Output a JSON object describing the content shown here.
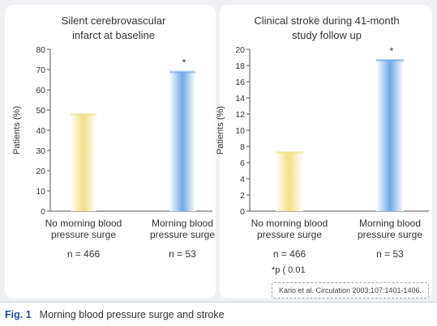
{
  "chart_data": [
    {
      "type": "bar",
      "title": [
        "Silent cerebrovascular",
        "infarct at baseline"
      ],
      "ylabel": "Patients (%)",
      "ylim": [
        0,
        80
      ],
      "yticks": [
        0,
        10,
        20,
        30,
        40,
        50,
        60,
        70,
        80
      ],
      "categories": [
        {
          "lines": [
            "No morning blood",
            "pressure surge"
          ],
          "n": "n = 466"
        },
        {
          "lines": [
            "Morning blood",
            "pressure surge"
          ],
          "n": "n = 53"
        }
      ],
      "values": [
        48,
        69
      ],
      "significance": [
        "",
        "*"
      ],
      "colors": [
        "#f1df86",
        "#6fa8e6"
      ]
    },
    {
      "type": "bar",
      "title": [
        "Clinical stroke during 41-month",
        "study follow up"
      ],
      "ylabel": "Patients (%)",
      "ylim": [
        0,
        20
      ],
      "yticks": [
        0,
        2,
        4,
        6,
        8,
        10,
        12,
        14,
        16,
        18,
        20
      ],
      "categories": [
        {
          "lines": [
            "No morning blood",
            "pressure surge"
          ],
          "n": "n = 466"
        },
        {
          "lines": [
            "Morning blood",
            "pressure surge"
          ],
          "n": "n = 53"
        }
      ],
      "values": [
        7.3,
        18.7
      ],
      "significance": [
        "",
        "*"
      ],
      "colors": [
        "#f1df86",
        "#6fa8e6"
      ]
    }
  ],
  "footnote": "*p ( 0.01",
  "citation": "Kario et al. Circulation 2003;107:1401-1406.",
  "caption": {
    "label": "Fig. 1",
    "text": "Morning blood pressure surge and stroke"
  }
}
